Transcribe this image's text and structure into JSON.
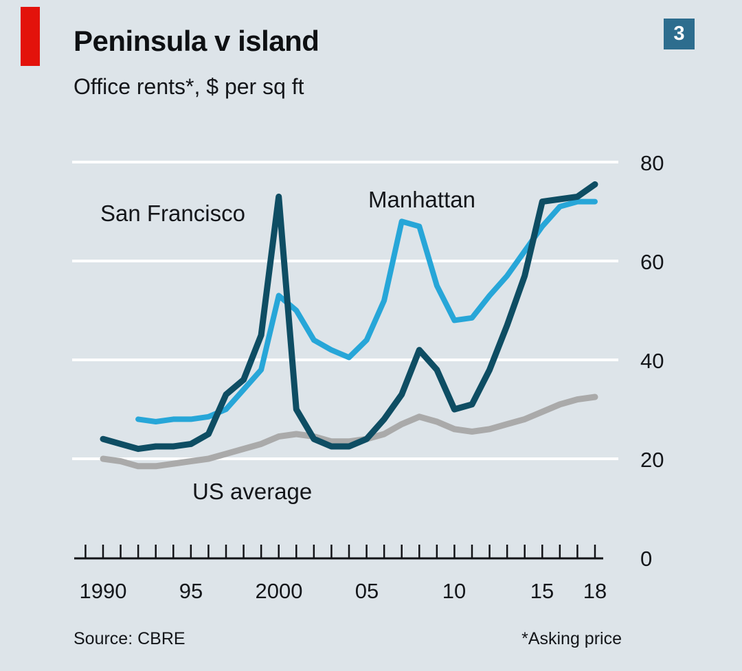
{
  "page": {
    "figure_number": "3",
    "title": "Peninsula v island",
    "subtitle": "Office rents*, $ per sq ft",
    "source": "Source: CBRE",
    "footnote": "*Asking price"
  },
  "labels": {
    "san_francisco": "San Francisco",
    "manhattan": "Manhattan",
    "us_average": "US average"
  },
  "y_axis": {
    "labels": [
      "80",
      "60",
      "40",
      "20",
      "0"
    ]
  },
  "x_axis": {
    "labels": [
      "1990",
      "95",
      "2000",
      "05",
      "10",
      "15",
      "18"
    ],
    "label_years": [
      1990,
      1995,
      2000,
      2005,
      2010,
      2015,
      2018
    ]
  },
  "colors": {
    "background": "#dde4e9",
    "red_tag": "#e3120b",
    "figure_box": "#2d6d8e",
    "san_francisco": "#0e4d63",
    "manhattan": "#27a6d8",
    "us_average": "#aaaaaa",
    "gridline": "#ffffff",
    "axis": "#121317",
    "text": "#14161a"
  },
  "chart_data": {
    "type": "line",
    "title": "Peninsula v island",
    "subtitle": "Office rents*, $ per sq ft",
    "ylabel": "$ per sq ft",
    "ylim": [
      0,
      80
    ],
    "yticks": [
      0,
      20,
      40,
      60,
      80
    ],
    "xlim": [
      1989,
      2018
    ],
    "grid": "horizontal white gridlines at 20/40/60/80",
    "legend": "inline labels next to lines",
    "series": [
      {
        "name": "US average",
        "color_key": "us_average",
        "width": 9,
        "x": [
          1990,
          1991,
          1992,
          1993,
          1994,
          1995,
          1996,
          1997,
          1998,
          1999,
          2000,
          2001,
          2002,
          2003,
          2004,
          2005,
          2006,
          2007,
          2008,
          2009,
          2010,
          2011,
          2012,
          2013,
          2014,
          2015,
          2016,
          2017,
          2018
        ],
        "values": [
          20,
          19.5,
          18.5,
          18.5,
          19,
          19.5,
          20,
          21,
          22,
          23,
          24.5,
          25,
          24.5,
          23.5,
          23.5,
          24,
          25,
          27,
          28.5,
          27.5,
          26,
          25.5,
          26,
          27,
          28,
          29.5,
          31,
          32,
          32.5
        ]
      },
      {
        "name": "Manhattan",
        "color_key": "manhattan",
        "width": 8,
        "x": [
          1992,
          1993,
          1994,
          1995,
          1996,
          1997,
          1998,
          1999,
          2000,
          2001,
          2002,
          2003,
          2004,
          2005,
          2006,
          2007,
          2008,
          2009,
          2010,
          2011,
          2012,
          2013,
          2014,
          2015,
          2016,
          2017,
          2018
        ],
        "values": [
          28,
          27.5,
          28,
          28,
          28.5,
          30,
          34,
          38,
          53,
          50,
          44,
          42,
          40.5,
          44,
          52,
          68,
          67,
          55,
          48,
          48.5,
          53,
          57,
          62,
          67,
          71,
          72,
          72
        ]
      },
      {
        "name": "San Francisco",
        "color_key": "san_francisco",
        "width": 9,
        "x": [
          1990,
          1991,
          1992,
          1993,
          1994,
          1995,
          1996,
          1997,
          1998,
          1999,
          2000,
          2001,
          2002,
          2003,
          2004,
          2005,
          2006,
          2007,
          2008,
          2009,
          2010,
          2011,
          2012,
          2013,
          2014,
          2015,
          2016,
          2017,
          2018
        ],
        "values": [
          24,
          23,
          22,
          22.5,
          22.5,
          23,
          25,
          33,
          36,
          45,
          73,
          30,
          24,
          22.5,
          22.5,
          24,
          28,
          33,
          42,
          38,
          30,
          31,
          38,
          47,
          57,
          72,
          72.5,
          73,
          75.5
        ]
      }
    ]
  }
}
